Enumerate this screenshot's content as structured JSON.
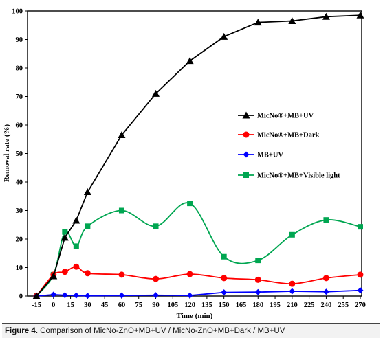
{
  "figure_label": "Figure 4.",
  "caption_text": "Comparison of MicNo-ZnO+MB+UV / MicNo-ZnO+MB+Dark / MB+UV",
  "chart_data": {
    "type": "line",
    "xlabel": "Time (min)",
    "ylabel": "Removal rate (%)",
    "xlim": [
      -15,
      270
    ],
    "ylim": [
      0,
      100
    ],
    "xticks": [
      -15,
      0,
      15,
      30,
      45,
      60,
      75,
      90,
      105,
      120,
      135,
      150,
      165,
      180,
      195,
      210,
      225,
      240,
      255,
      270
    ],
    "yticks": [
      0,
      10,
      20,
      30,
      40,
      50,
      60,
      70,
      80,
      90,
      100
    ],
    "legend_position": "right-middle",
    "grid": false,
    "series": [
      {
        "name": "MicNo®+MB+UV",
        "color": "#000000",
        "marker": "triangle",
        "smooth": false,
        "x": [
          -15,
          0,
          10,
          20,
          30,
          60,
          90,
          120,
          150,
          180,
          210,
          240,
          270
        ],
        "y": [
          0,
          7,
          20.5,
          26.5,
          36.5,
          56.5,
          71,
          82.5,
          91,
          96,
          96.5,
          98,
          98.5
        ]
      },
      {
        "name": "MicNo®+MB+Dark",
        "color": "#ff0000",
        "marker": "circle",
        "smooth": true,
        "x": [
          -15,
          0,
          10,
          20,
          30,
          60,
          90,
          120,
          150,
          180,
          210,
          240,
          270
        ],
        "y": [
          0,
          7.5,
          8.5,
          10.3,
          8,
          7.5,
          6,
          7.7,
          6.3,
          5.7,
          4.3,
          6.3,
          7.5
        ]
      },
      {
        "name": "MB+UV",
        "color": "#0000ff",
        "marker": "diamond",
        "smooth": false,
        "x": [
          -15,
          0,
          10,
          20,
          30,
          60,
          90,
          120,
          150,
          180,
          210,
          240,
          270
        ],
        "y": [
          0,
          0.5,
          0.3,
          0.2,
          0.1,
          0.2,
          0.3,
          0.2,
          1.3,
          1.4,
          1.7,
          1.5,
          2
        ]
      },
      {
        "name": "MicNo®+MB+Visible light",
        "color": "#00a651",
        "marker": "square",
        "smooth": true,
        "x": [
          -15,
          0,
          10,
          20,
          30,
          60,
          90,
          120,
          150,
          180,
          210,
          240,
          270
        ],
        "y": [
          0,
          7.5,
          22.5,
          17.5,
          24.5,
          30,
          24.5,
          32.5,
          13.8,
          12.5,
          21.5,
          26.7,
          24.3
        ]
      }
    ]
  }
}
